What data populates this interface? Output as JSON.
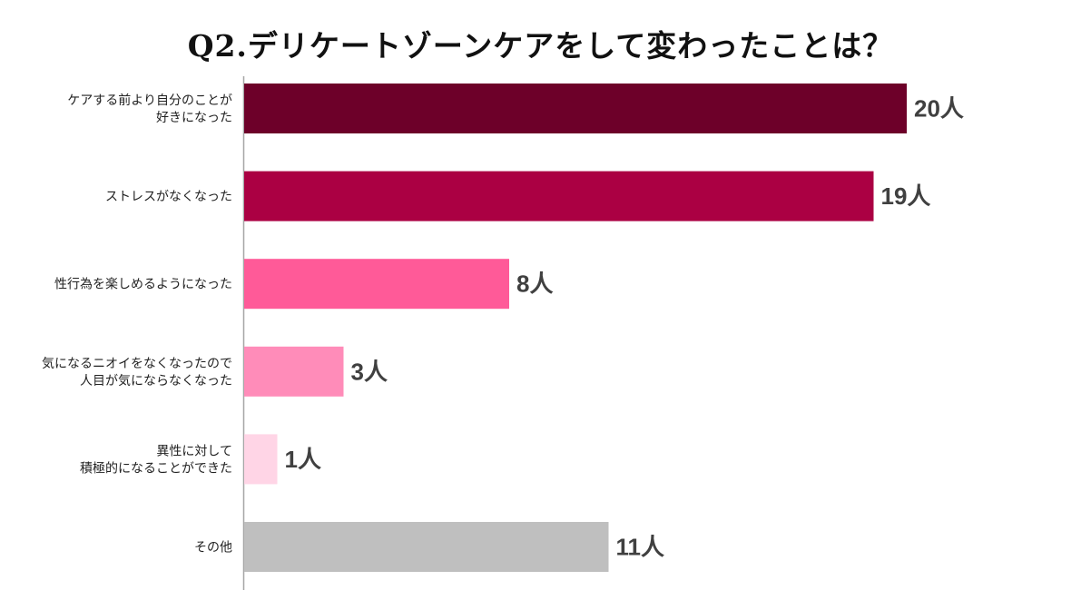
{
  "chart_data": {
    "type": "bar",
    "orientation": "horizontal",
    "title": "Q2.デリケートゾーンケアをして変わったことは？",
    "categories": [
      [
        "ケアする前より自分のことが",
        "好きになった"
      ],
      [
        "ストレスがなくなった"
      ],
      [
        "性行為を楽しめるようになった"
      ],
      [
        "気になるニオイをなくなったので",
        "人目が気にならなくなった"
      ],
      [
        "異性に対して",
        "積極的になることができた"
      ],
      [
        "その他"
      ]
    ],
    "values": [
      20,
      19,
      8,
      3,
      1,
      11
    ],
    "value_suffix": "人",
    "colors": [
      "#6d0029",
      "#ab0043",
      "#ff5a98",
      "#ff8cb9",
      "#ffd5e6",
      "#bfbfbf"
    ],
    "xlim": [
      0,
      20
    ],
    "grid": false,
    "legend": "none"
  }
}
